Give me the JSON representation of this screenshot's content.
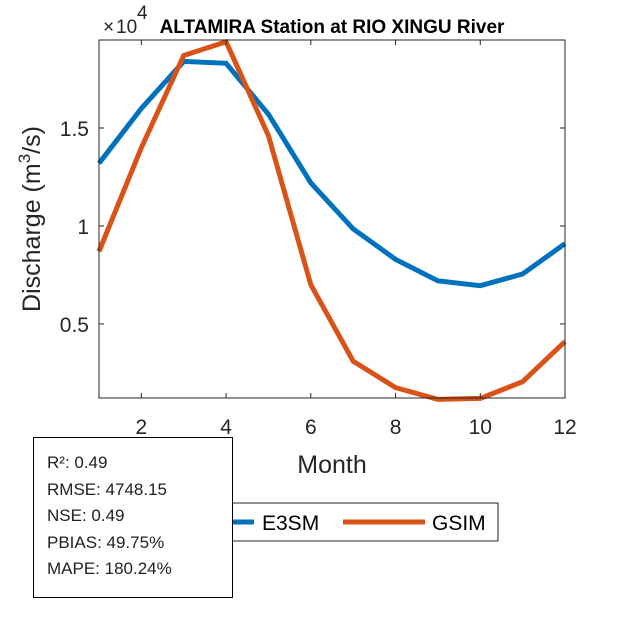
{
  "chart_data": {
    "type": "line",
    "title": "ALTAMIRA  Station at  RIO XINGU  River",
    "xlabel": "Month",
    "ylabel": "Discharge (m³/s)",
    "ylabel_parts": {
      "prefix": "Discharge (m",
      "superscript": "3",
      "suffix": "/s)"
    },
    "y_exponent_label": {
      "times": "×",
      "base": "10",
      "power": "4"
    },
    "y_scale_factor": 10000,
    "x": [
      1,
      2,
      3,
      4,
      5,
      6,
      7,
      8,
      9,
      10,
      11,
      12
    ],
    "xlim": [
      1,
      12
    ],
    "ylim": [
      0.122,
      1.949
    ],
    "xticks": [
      2,
      4,
      6,
      8,
      10,
      12
    ],
    "xtick_labels": [
      "2",
      "4",
      "6",
      "8",
      "10",
      "12"
    ],
    "yticks": [
      0.5,
      1,
      1.5
    ],
    "ytick_labels": [
      "0.5",
      "1",
      "1.5"
    ],
    "grid": false,
    "series": [
      {
        "name": "E3SM",
        "color": "#0072BD",
        "values": [
          1.32,
          1.6,
          1.84,
          1.83,
          1.57,
          1.22,
          0.985,
          0.83,
          0.72,
          0.695,
          0.755,
          0.91
        ]
      },
      {
        "name": "GSIM",
        "color": "#D95319",
        "values": [
          0.87,
          1.4,
          1.87,
          1.94,
          1.46,
          0.7,
          0.31,
          0.175,
          0.115,
          0.12,
          0.205,
          0.41
        ]
      }
    ],
    "legend": {
      "placement": "bottom-center",
      "orientation": "horizontal",
      "entries": [
        "E3SM",
        "GSIM"
      ]
    },
    "annotations": [
      "R²: 0.49",
      "RMSE: 4748.15",
      "NSE: 0.49",
      "PBIAS: 49.75%",
      "MAPE: 180.24%"
    ]
  },
  "stats": {
    "r2": "R²: 0.49",
    "rmse": "RMSE: 4748.15",
    "nse": "NSE: 0.49",
    "pbias": "PBIAS: 49.75%",
    "mape": "MAPE: 180.24%"
  }
}
